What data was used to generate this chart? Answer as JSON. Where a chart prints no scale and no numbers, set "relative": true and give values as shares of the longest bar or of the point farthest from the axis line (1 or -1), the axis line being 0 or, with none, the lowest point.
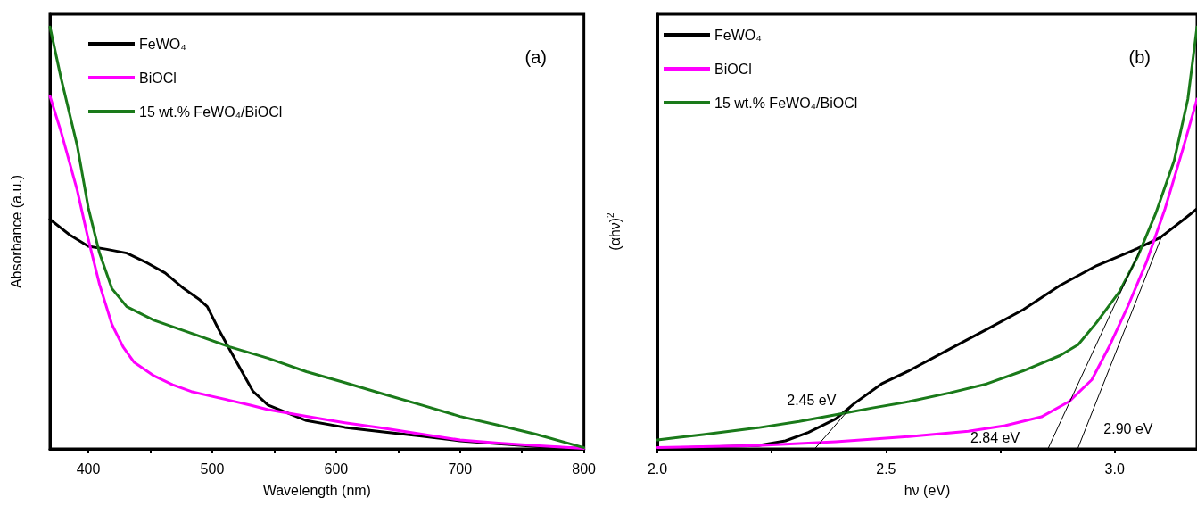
{
  "chart_data": [
    {
      "type": "line",
      "xlabel": "Wavelength (nm)",
      "ylabel": "Absorbance (a.u.)",
      "relative": true,
      "marker": "none",
      "legend": "top left",
      "grid": false,
      "xlim": [
        369,
        800
      ],
      "xticks": [
        400,
        {
          "value": 450,
          "label": null
        },
        500,
        {
          "value": 550,
          "label": null
        },
        600,
        {
          "value": 650,
          "label": null
        },
        700,
        {
          "value": 750,
          "label": null
        },
        800
      ],
      "annotations": [
        "(a)"
      ],
      "series": [
        {
          "name": "FeWO₄",
          "color": "#000000",
          "x": [
            369,
            385,
            400,
            415,
            431,
            446,
            462,
            477,
            490,
            496,
            505,
            514,
            524,
            533,
            545,
            561,
            576,
            607,
            638,
            669,
            700,
            731,
            761,
            800
          ],
          "values": [
            0.544,
            0.507,
            0.48,
            0.473,
            0.464,
            0.443,
            0.417,
            0.38,
            0.353,
            0.337,
            0.284,
            0.236,
            0.183,
            0.136,
            0.104,
            0.085,
            0.067,
            0.051,
            0.04,
            0.03,
            0.019,
            0.012,
            0.006,
            0.001
          ]
        },
        {
          "name": "BiOCl",
          "color": "#ff00ff",
          "x": [
            369,
            378,
            391,
            400,
            409,
            419,
            428,
            437,
            453,
            468,
            483,
            499,
            514,
            530,
            545,
            576,
            607,
            638,
            669,
            700,
            731,
            761,
            800
          ],
          "values": [
            0.836,
            0.751,
            0.613,
            0.496,
            0.39,
            0.295,
            0.242,
            0.205,
            0.173,
            0.152,
            0.136,
            0.125,
            0.115,
            0.104,
            0.093,
            0.077,
            0.062,
            0.049,
            0.035,
            0.021,
            0.014,
            0.008,
            0.001
          ]
        },
        {
          "name": "15 wt.% FeWO₄/BiOCl",
          "color": "#1a7a1a",
          "x": [
            369,
            378,
            391,
            400,
            409,
            419,
            431,
            453,
            483,
            514,
            545,
            576,
            607,
            638,
            669,
            700,
            731,
            761,
            800
          ],
          "values": [
            1.0,
            0.878,
            0.719,
            0.571,
            0.464,
            0.38,
            0.337,
            0.305,
            0.274,
            0.242,
            0.215,
            0.183,
            0.157,
            0.13,
            0.104,
            0.077,
            0.056,
            0.035,
            0.003
          ]
        }
      ]
    },
    {
      "type": "line",
      "xlabel": "hν (eV)",
      "ylabel": "(αhν)$^{2}$",
      "relative": true,
      "marker": "none",
      "legend": "top left",
      "grid": false,
      "xlim": [
        2.0,
        3.18
      ],
      "xticks": [
        {
          "value": 2,
          "label": "2.0"
        },
        {
          "value": 2.25,
          "label": null
        },
        2.5,
        {
          "value": 2.75,
          "label": null
        },
        {
          "value": 3,
          "label": "3.0"
        }
      ],
      "annotations": [
        "(b)",
        "2.45 eV",
        "2.84 eV",
        "2.90 eV"
      ],
      "series": [
        {
          "name": "FeWO₄",
          "color": "#000000",
          "x": [
            2.0,
            2.22,
            2.28,
            2.33,
            2.39,
            2.43,
            2.49,
            2.55,
            2.64,
            2.72,
            2.8,
            2.88,
            2.96,
            3.05,
            3.1,
            3.15,
            3.18
          ],
          "values": [
            0.001,
            0.008,
            0.019,
            0.039,
            0.071,
            0.107,
            0.154,
            0.185,
            0.237,
            0.283,
            0.33,
            0.387,
            0.434,
            0.475,
            0.501,
            0.543,
            0.569
          ]
        },
        {
          "name": "BiOCl",
          "color": "#ff00ff",
          "x": [
            2.0,
            2.22,
            2.39,
            2.55,
            2.68,
            2.76,
            2.84,
            2.9,
            2.95,
            2.99,
            3.03,
            3.07,
            3.11,
            3.15,
            3.18
          ],
          "values": [
            0.003,
            0.008,
            0.017,
            0.029,
            0.042,
            0.055,
            0.076,
            0.112,
            0.164,
            0.247,
            0.341,
            0.444,
            0.569,
            0.714,
            0.829
          ]
        },
        {
          "name": "15 wt.% FeWO₄/BiOCl",
          "color": "#1a7a1a",
          "x": [
            2.0,
            2.1,
            2.22,
            2.31,
            2.39,
            2.47,
            2.55,
            2.64,
            2.72,
            2.8,
            2.88,
            2.92,
            2.96,
            3.01,
            3.05,
            3.09,
            3.13,
            3.16,
            3.18
          ],
          "values": [
            0.021,
            0.034,
            0.05,
            0.065,
            0.081,
            0.097,
            0.112,
            0.133,
            0.154,
            0.185,
            0.221,
            0.247,
            0.299,
            0.372,
            0.455,
            0.559,
            0.683,
            0.829,
            1.0
          ]
        },
        {
          "color": "#000000",
          "x": [
            2.344,
            2.422
          ],
          "values": [
            0,
            0.097
          ]
        },
        {
          "color": "#000000",
          "x": [
            2.854,
            3.055
          ],
          "values": [
            0,
            0.47
          ]
        },
        {
          "color": "#000000",
          "x": [
            2.919,
            3.104
          ],
          "values": [
            0,
            0.507
          ]
        }
      ]
    }
  ]
}
